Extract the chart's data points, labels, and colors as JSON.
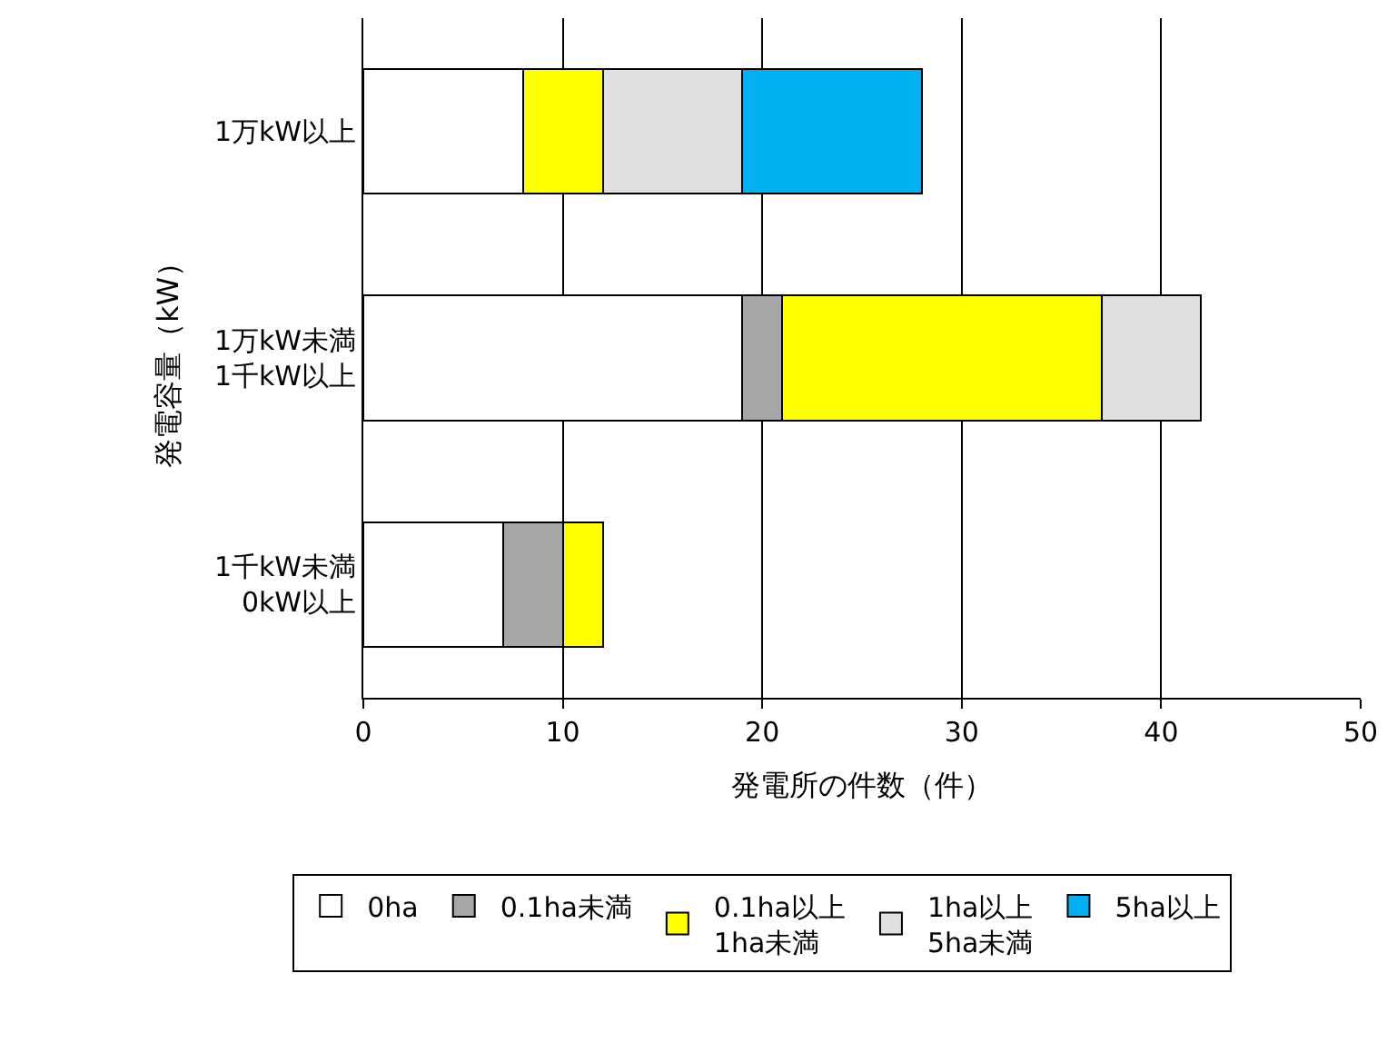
{
  "chart_data": {
    "type": "bar",
    "orientation": "horizontal",
    "stacked": true,
    "categories": [
      "1万kW以上",
      "1万kW未満\n1千kW以上",
      "1千kW未満\n0kW以上"
    ],
    "series": [
      {
        "name": "0ha",
        "color": "#ffffff",
        "values": [
          8,
          19,
          7
        ]
      },
      {
        "name": "0.1ha未満",
        "color": "#a6a6a6",
        "values": [
          null,
          2,
          3
        ]
      },
      {
        "name": "0.1ha以上\n1ha未満",
        "color": "#ffff00",
        "values": [
          4,
          16,
          2
        ]
      },
      {
        "name": "1ha以上\n5ha未満",
        "color": "#e0e0e0",
        "values": [
          7,
          5,
          null
        ]
      },
      {
        "name": "5ha以上",
        "color": "#00b0f0",
        "values": [
          9,
          null,
          null
        ]
      }
    ],
    "xlabel": "発電所の件数（件）",
    "ylabel": "発電容量（kW）",
    "xlim": [
      0,
      50
    ],
    "xticks": [
      0,
      10,
      20,
      30,
      40,
      50
    ],
    "grid": "x",
    "legend": "bottom"
  }
}
